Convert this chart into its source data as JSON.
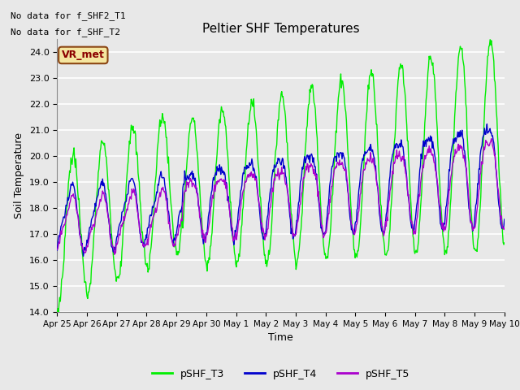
{
  "title": "Peltier SHF Temperatures",
  "xlabel": "Time",
  "ylabel": "Soil Temperature",
  "ylim": [
    14.0,
    24.5
  ],
  "yticks": [
    14.0,
    15.0,
    16.0,
    17.0,
    18.0,
    19.0,
    20.0,
    21.0,
    22.0,
    23.0,
    24.0
  ],
  "background_color": "#e8e8e8",
  "plot_bg_color": "#e8e8e8",
  "grid_color": "#ffffff",
  "annotations_top_left": [
    "No data for f_SHF2_T1",
    "No data for f_SHF_T2"
  ],
  "vr_met_label": "VR_met",
  "legend_entries": [
    "pSHF_T3",
    "pSHF_T4",
    "pSHF_T5"
  ],
  "legend_colors": [
    "#00ee00",
    "#0000cc",
    "#aa00cc"
  ],
  "line_colors": [
    "#00ee00",
    "#0000cc",
    "#aa00cc"
  ],
  "x_tick_labels": [
    "Apr 25",
    "Apr 26",
    "Apr 27",
    "Apr 28",
    "Apr 29",
    "Apr 30",
    "May 1",
    "May 2",
    "May 3",
    "May 4",
    "May 5",
    "May 6",
    "May 7",
    "May 8",
    "May 9",
    "May 10"
  ],
  "num_points": 720,
  "figwidth": 6.4,
  "figheight": 4.8,
  "dpi": 100
}
